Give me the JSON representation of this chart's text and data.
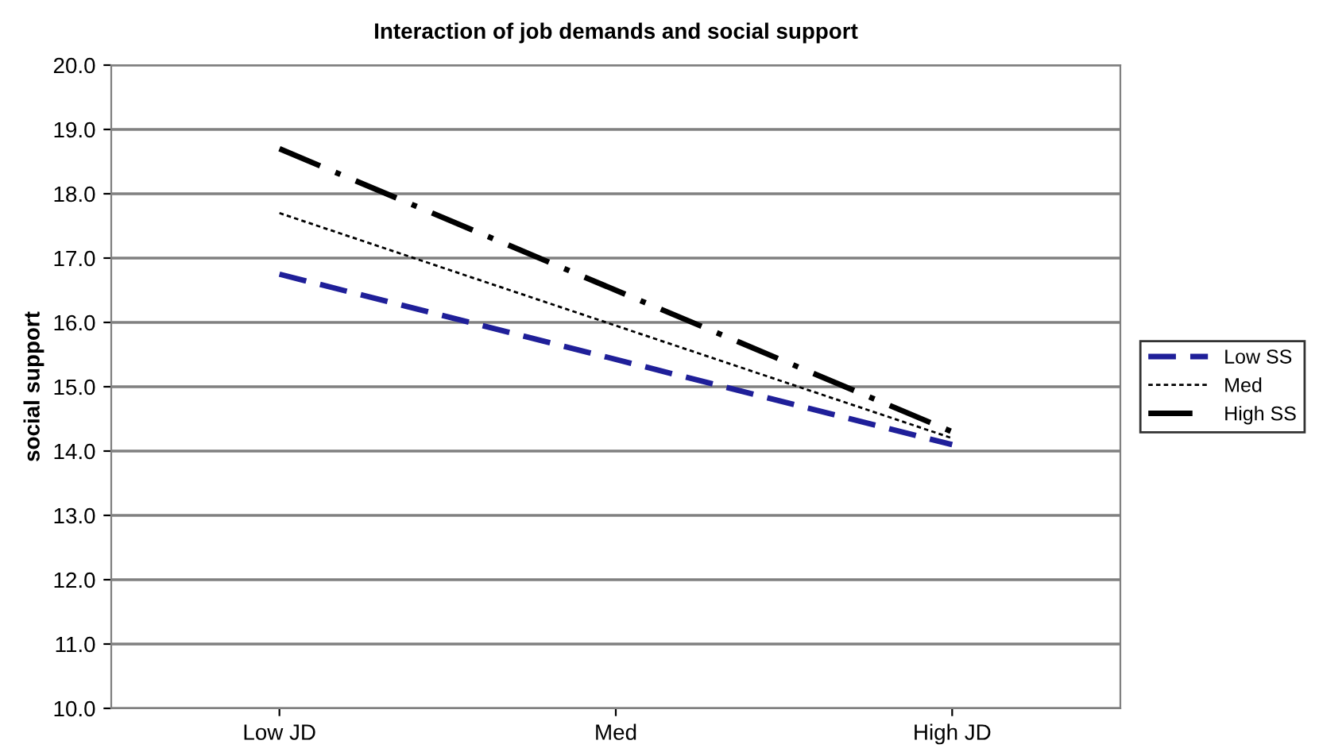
{
  "chart_data": {
    "type": "line",
    "title": "Interaction of job demands and social support",
    "ylabel": "social support",
    "categories": [
      "Low JD",
      "Med",
      "High JD"
    ],
    "series": [
      {
        "name": "Low SS",
        "color": "#1f1f99",
        "values": [
          16.75,
          null,
          14.1
        ],
        "line_style": "dashed"
      },
      {
        "name": "Med",
        "color": "#000000",
        "values": [
          17.7,
          null,
          14.2
        ],
        "line_style": "dotted"
      },
      {
        "name": "High SS",
        "color": "#000000",
        "values": [
          18.7,
          null,
          14.3
        ],
        "line_style": "dashdot"
      }
    ],
    "ylim": [
      10,
      20
    ],
    "yticks": [
      {
        "value": 10,
        "label": "10.0"
      },
      {
        "value": 11,
        "label": "11.0"
      },
      {
        "value": 12,
        "label": "12.0"
      },
      {
        "value": 13,
        "label": "13.0"
      },
      {
        "value": 14,
        "label": "14.0"
      },
      {
        "value": 15,
        "label": "15.0"
      },
      {
        "value": 16,
        "label": "16.0"
      },
      {
        "value": 17,
        "label": "17.0"
      },
      {
        "value": 18,
        "label": "18.0"
      },
      {
        "value": 19,
        "label": "19.0"
      },
      {
        "value": 20,
        "label": "20.0"
      }
    ],
    "grid": "y",
    "legend": "right",
    "marker": "none"
  }
}
